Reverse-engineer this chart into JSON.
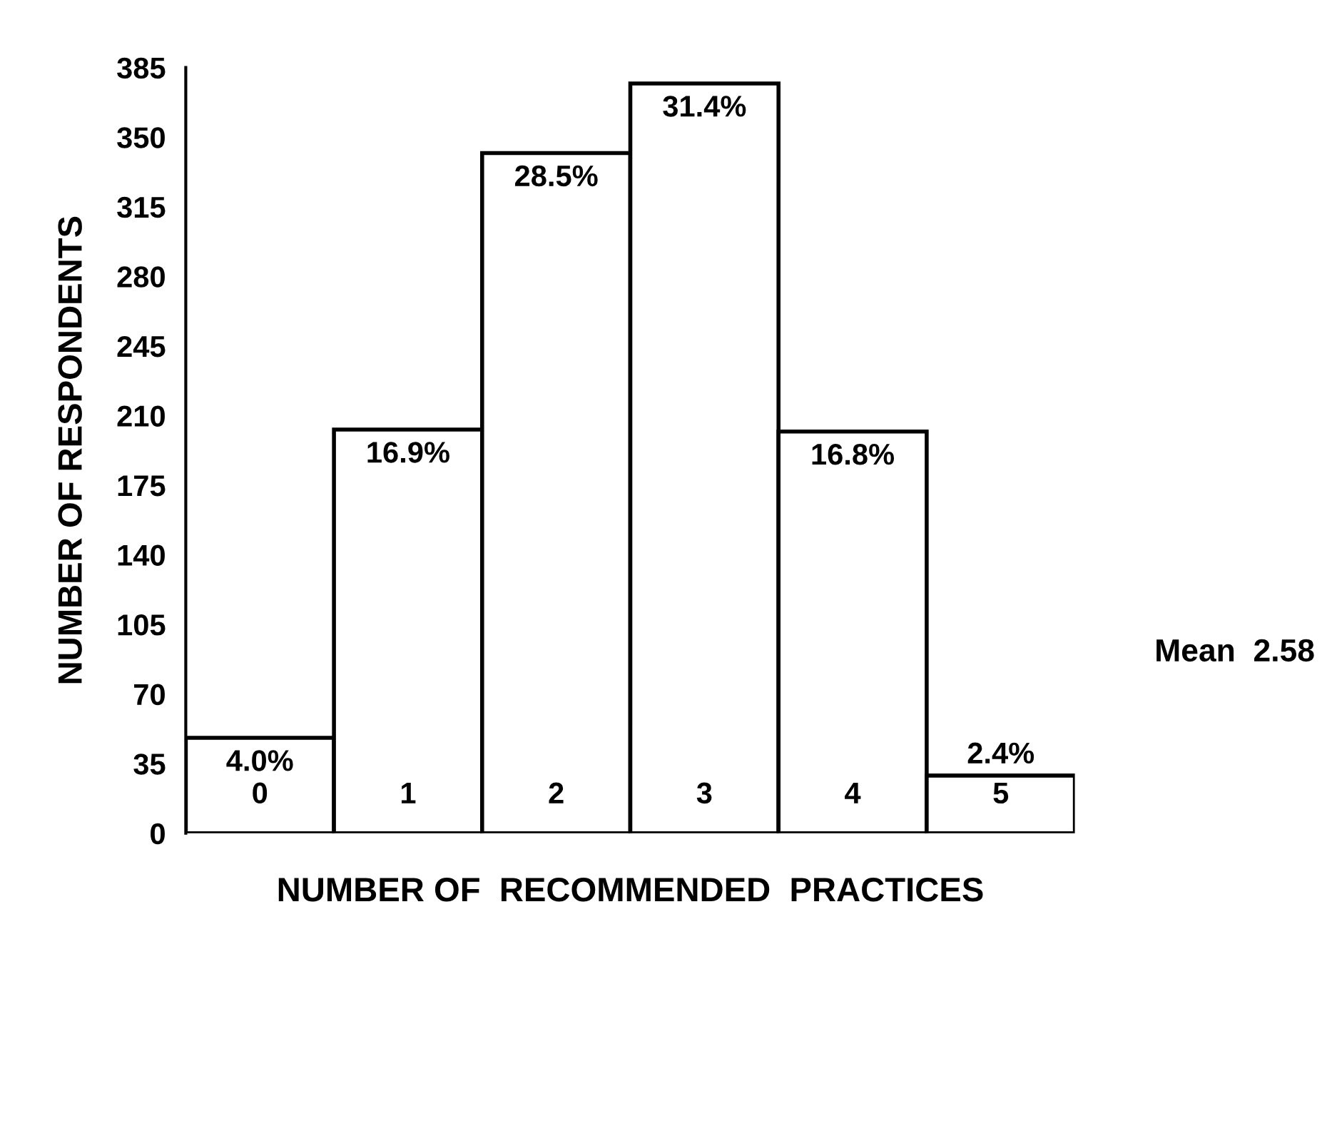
{
  "chart_data": {
    "type": "bar",
    "xlabel": "NUMBER OF  RECOMMENDED  PRACTICES",
    "ylabel": "NUMBER OF RESPONDENTS",
    "categories": [
      "0",
      "1",
      "2",
      "3",
      "4",
      "5"
    ],
    "values": [
      48,
      203,
      342,
      377,
      202,
      29
    ],
    "color": "#ffffff",
    "ylim": [
      0,
      385
    ],
    "yticks": [
      0,
      35,
      70,
      105,
      140,
      175,
      210,
      245,
      280,
      315,
      350,
      385
    ],
    "annotations": [
      {
        "text": "4.0%",
        "x": "0",
        "y": 48
      },
      {
        "text": "16.9%",
        "x": "1",
        "y": 203
      },
      {
        "text": "28.5%",
        "x": "2",
        "y": 342
      },
      {
        "text": "31.4%",
        "x": "3",
        "y": 377
      },
      {
        "text": "16.8%",
        "x": "4",
        "y": 202
      },
      {
        "text": "2.4%",
        "x": "5",
        "y": 29
      },
      "Mean  2.58"
    ],
    "grid": false
  }
}
